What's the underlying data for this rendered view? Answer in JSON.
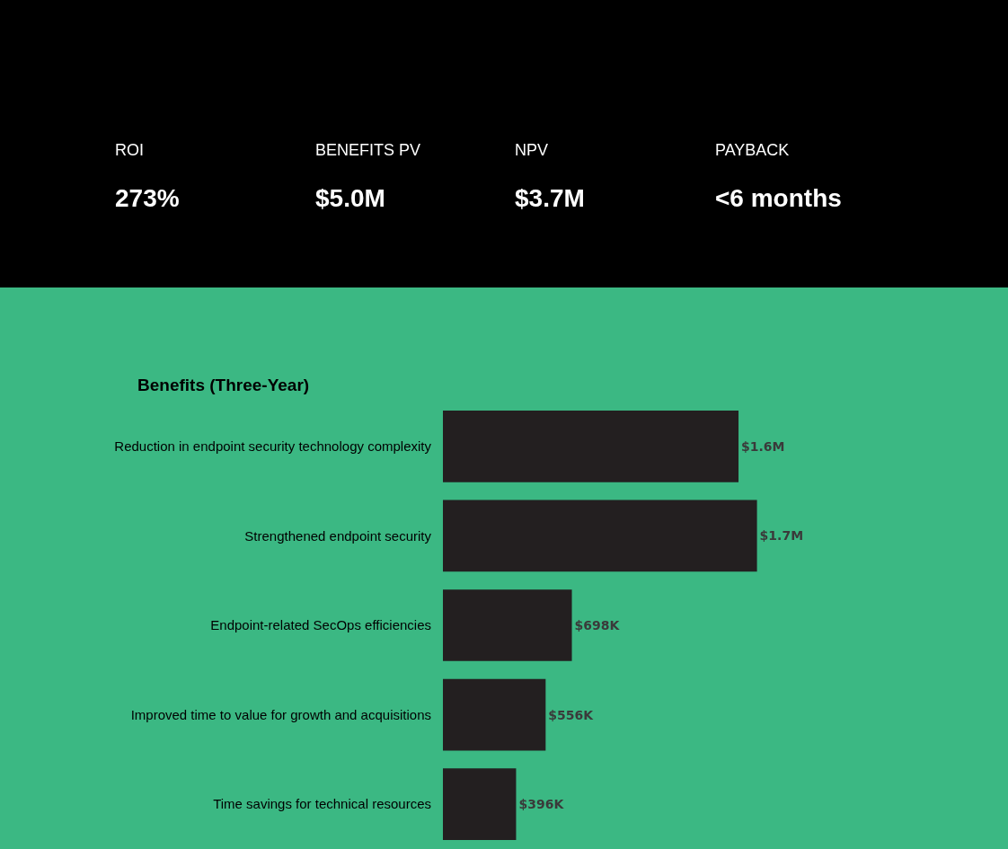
{
  "chart_data": [
    {
      "type": "other",
      "annotations": [
        "ROI",
        "273%",
        "BENEFITS PV",
        "$5.0M",
        "NPV",
        "$3.7M",
        "PAYBACK",
        "<6 months"
      ]
    },
    {
      "type": "bar",
      "title": "Benefits (Three-Year)",
      "orientation": "horizontal",
      "categories": [
        "Reduction in endpoint security technology complexity",
        "Strengthened endpoint security",
        "Endpoint-related SecOps efficiencies",
        "Improved time to value for growth and acquisitions",
        "Time savings for technical resources"
      ],
      "values": [
        1600000,
        1700000,
        698000,
        556000,
        396000
      ],
      "value_labels": [
        "$1.6M",
        "$1.7M",
        "$698K",
        "$556K",
        "$396K"
      ],
      "color": "#231f20"
    }
  ]
}
